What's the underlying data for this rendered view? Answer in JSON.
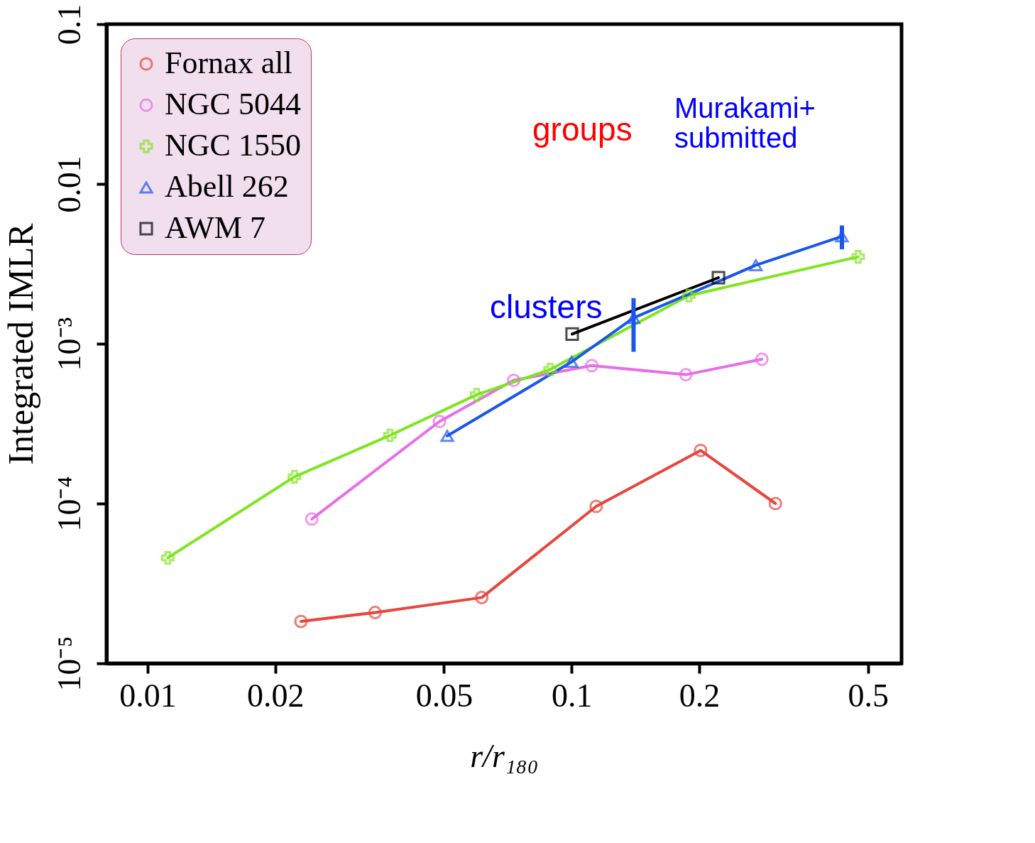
{
  "chart_data": {
    "type": "line",
    "xlabel": "r/r₁₈₀",
    "ylabel": "Integrated IMLR",
    "log": "xy",
    "grid": false,
    "legend": "top left",
    "xlim": [
      0.008,
      0.6
    ],
    "ylim": [
      1e-05,
      0.1
    ],
    "xticks": [
      0.01,
      0.02,
      0.05,
      0.1,
      0.2,
      0.5
    ],
    "yticks": [
      {
        "value": 1e-05,
        "label": "10⁻⁵"
      },
      {
        "value": 0.0001,
        "label": "10⁻⁴"
      },
      {
        "value": 0.001,
        "label": "10⁻³"
      },
      0.01,
      0.1
    ],
    "annotations": [
      "groups",
      "clusters",
      "Murakami+ submitted"
    ],
    "series": [
      {
        "name": "Fornax all",
        "color": "#e8453c",
        "marker": "circle",
        "x": [
          0.023,
          0.0344,
          0.0614,
          0.1143,
          0.2015,
          0.3025
        ],
        "values": [
          1.83e-05,
          2.08e-05,
          2.58e-05,
          9.6e-05,
          0.000215,
          0.0001
        ]
      },
      {
        "name": "NGC 5044",
        "color": "#e86de8",
        "marker": "circle",
        "x": [
          0.0244,
          0.0488,
          0.073,
          0.1116,
          0.186,
          0.281
        ],
        "values": [
          8e-05,
          0.000326,
          0.00059,
          0.00073,
          0.00064,
          0.0008
        ]
      },
      {
        "name": "NGC 1550",
        "color": "#7ee51e",
        "marker": "cross",
        "x": [
          0.01116,
          0.0222,
          0.0373,
          0.0597,
          0.089,
          0.189,
          0.474
        ],
        "values": [
          4.57e-05,
          0.000147,
          0.000267,
          0.000479,
          0.00069,
          0.002,
          0.0035
        ]
      },
      {
        "name": "Abell 262",
        "color": "#1a55f0",
        "marker": "triangle",
        "x": [
          0.0509,
          0.1,
          0.14,
          0.272,
          0.434
        ],
        "values": [
          0.000265,
          0.00077,
          0.00145,
          0.0031,
          0.0047
        ],
        "errors": [
          null,
          null,
          [
            0.00089,
            0.00193
          ],
          null,
          [
            0.0039,
            0.0055
          ]
        ]
      },
      {
        "name": "AWM 7",
        "color": "#000000",
        "marker": "square",
        "x": [
          0.1003,
          0.222
        ],
        "values": [
          0.00115,
          0.00259
        ]
      }
    ]
  }
}
